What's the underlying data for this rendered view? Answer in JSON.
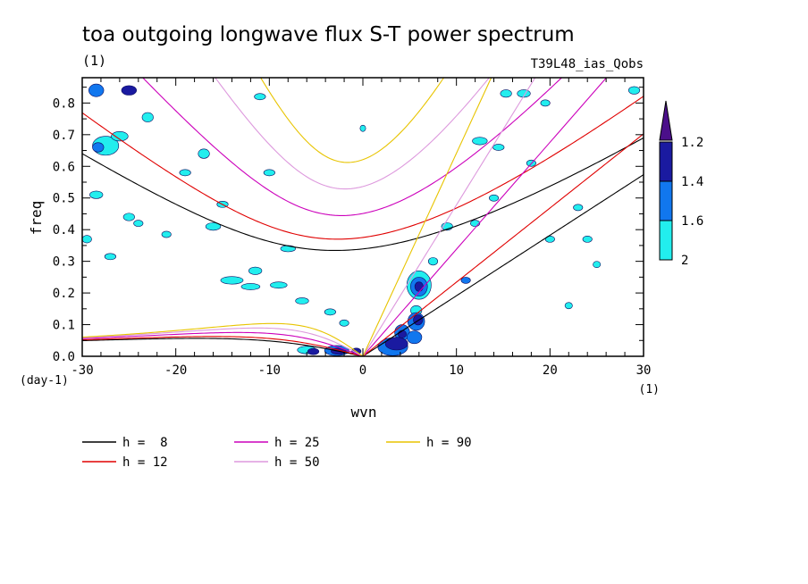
{
  "chart_data": {
    "type": "contour",
    "title": "toa outgoing longwave flux S-T power spectrum",
    "subtitle_left": "(1)",
    "subtitle_right": "T39L48_ias_Qobs",
    "xlabel": "wvn",
    "ylabel": "freq",
    "x_unit": "(1)",
    "y_unit": "(day-1)",
    "xlim": [
      -30,
      30
    ],
    "ylim": [
      0,
      0.88
    ],
    "x_ticks": [
      -30,
      -20,
      -10,
      0,
      10,
      20,
      30
    ],
    "x_tick_labels": [
      "-30",
      "-20",
      "-10",
      "0",
      "10",
      "20",
      "30"
    ],
    "y_ticks": [
      0,
      0.1,
      0.2,
      0.3,
      0.4,
      0.5,
      0.6,
      0.7,
      0.8
    ],
    "y_tick_labels": [
      "0.0",
      "0.1",
      "0.2",
      "0.3",
      "0.4",
      "0.5",
      "0.6",
      "0.7",
      "0.8"
    ],
    "colorbar": {
      "levels": [
        "1.2",
        "1.4",
        "1.6",
        "2"
      ],
      "colors": [
        "#22eeee",
        "#1177ee",
        "#1a1aa0",
        "#4b0f8a"
      ]
    },
    "dispersion_curves": [
      {
        "label": "h =  8",
        "h": 8,
        "color": "#000000"
      },
      {
        "label": "h = 12",
        "h": 12,
        "color": "#e00000"
      },
      {
        "label": "h = 25",
        "h": 25,
        "color": "#cc00bb"
      },
      {
        "label": "h = 50",
        "h": 50,
        "color": "#dd99dd"
      },
      {
        "label": "h = 90",
        "h": 90,
        "color": "#e8c400"
      }
    ],
    "blobs": [
      {
        "x": -28.5,
        "y": 0.84,
        "rx": 0.8,
        "ry": 0.02,
        "level": 2
      },
      {
        "x": -25,
        "y": 0.84,
        "rx": 0.8,
        "ry": 0.015,
        "level": 3
      },
      {
        "x": -27.5,
        "y": 0.665,
        "rx": 1.4,
        "ry": 0.03,
        "level": 1
      },
      {
        "x": -28.3,
        "y": 0.66,
        "rx": 0.6,
        "ry": 0.015,
        "level": 2
      },
      {
        "x": -26,
        "y": 0.695,
        "rx": 0.9,
        "ry": 0.015,
        "level": 1
      },
      {
        "x": -23,
        "y": 0.755,
        "rx": 0.6,
        "ry": 0.015,
        "level": 1
      },
      {
        "x": -25,
        "y": 0.44,
        "rx": 0.6,
        "ry": 0.012,
        "level": 1
      },
      {
        "x": -28.5,
        "y": 0.51,
        "rx": 0.7,
        "ry": 0.012,
        "level": 1
      },
      {
        "x": -29.5,
        "y": 0.37,
        "rx": 0.5,
        "ry": 0.012,
        "level": 1
      },
      {
        "x": -24,
        "y": 0.42,
        "rx": 0.5,
        "ry": 0.01,
        "level": 1
      },
      {
        "x": -19,
        "y": 0.58,
        "rx": 0.6,
        "ry": 0.01,
        "level": 1
      },
      {
        "x": -17,
        "y": 0.64,
        "rx": 0.6,
        "ry": 0.015,
        "level": 1
      },
      {
        "x": -15,
        "y": 0.48,
        "rx": 0.6,
        "ry": 0.01,
        "level": 1
      },
      {
        "x": -10,
        "y": 0.58,
        "rx": 0.6,
        "ry": 0.01,
        "level": 1
      },
      {
        "x": -11,
        "y": 0.82,
        "rx": 0.6,
        "ry": 0.01,
        "level": 1
      },
      {
        "x": -8,
        "y": 0.34,
        "rx": 0.8,
        "ry": 0.01,
        "level": 1
      },
      {
        "x": -16,
        "y": 0.41,
        "rx": 0.8,
        "ry": 0.012,
        "level": 1
      },
      {
        "x": -21,
        "y": 0.385,
        "rx": 0.5,
        "ry": 0.01,
        "level": 1
      },
      {
        "x": -27,
        "y": 0.315,
        "rx": 0.6,
        "ry": 0.01,
        "level": 1
      },
      {
        "x": -14,
        "y": 0.24,
        "rx": 1.2,
        "ry": 0.012,
        "level": 1
      },
      {
        "x": -12,
        "y": 0.22,
        "rx": 1.0,
        "ry": 0.01,
        "level": 1
      },
      {
        "x": -9,
        "y": 0.225,
        "rx": 0.9,
        "ry": 0.01,
        "level": 1
      },
      {
        "x": -11.5,
        "y": 0.27,
        "rx": 0.7,
        "ry": 0.012,
        "level": 1
      },
      {
        "x": -6.5,
        "y": 0.175,
        "rx": 0.7,
        "ry": 0.01,
        "level": 1
      },
      {
        "x": -3.5,
        "y": 0.14,
        "rx": 0.6,
        "ry": 0.01,
        "level": 1
      },
      {
        "x": -2,
        "y": 0.105,
        "rx": 0.5,
        "ry": 0.01,
        "level": 1
      },
      {
        "x": -6,
        "y": 0.02,
        "rx": 1.0,
        "ry": 0.012,
        "level": 1
      },
      {
        "x": -5.3,
        "y": 0.015,
        "rx": 0.6,
        "ry": 0.01,
        "level": 3
      },
      {
        "x": -2.8,
        "y": 0.018,
        "rx": 1.3,
        "ry": 0.016,
        "level": 2
      },
      {
        "x": -2.6,
        "y": 0.016,
        "rx": 0.8,
        "ry": 0.01,
        "level": 3
      },
      {
        "x": -0.7,
        "y": 0.016,
        "rx": 0.5,
        "ry": 0.01,
        "level": 3
      },
      {
        "x": 3.2,
        "y": 0.03,
        "rx": 1.6,
        "ry": 0.028,
        "level": 2
      },
      {
        "x": 3.6,
        "y": 0.04,
        "rx": 1.2,
        "ry": 0.02,
        "level": 3
      },
      {
        "x": 4.2,
        "y": 0.075,
        "rx": 0.8,
        "ry": 0.025,
        "level": 2
      },
      {
        "x": 4.2,
        "y": 0.07,
        "rx": 0.45,
        "ry": 0.012,
        "level": 3
      },
      {
        "x": 5.5,
        "y": 0.06,
        "rx": 0.8,
        "ry": 0.02,
        "level": 2
      },
      {
        "x": 5.7,
        "y": 0.11,
        "rx": 0.9,
        "ry": 0.028,
        "level": 2
      },
      {
        "x": 5.9,
        "y": 0.115,
        "rx": 0.5,
        "ry": 0.016,
        "level": 3
      },
      {
        "x": 5.7,
        "y": 0.145,
        "rx": 0.6,
        "ry": 0.015,
        "level": 1
      },
      {
        "x": 6,
        "y": 0.225,
        "rx": 1.3,
        "ry": 0.045,
        "level": 1
      },
      {
        "x": 6,
        "y": 0.22,
        "rx": 0.9,
        "ry": 0.03,
        "level": 2
      },
      {
        "x": 6,
        "y": 0.22,
        "rx": 0.45,
        "ry": 0.015,
        "level": 3
      },
      {
        "x": 7.5,
        "y": 0.3,
        "rx": 0.5,
        "ry": 0.012,
        "level": 1
      },
      {
        "x": 11,
        "y": 0.24,
        "rx": 0.5,
        "ry": 0.01,
        "level": 2
      },
      {
        "x": 12.5,
        "y": 0.68,
        "rx": 0.8,
        "ry": 0.012,
        "level": 1
      },
      {
        "x": 14.5,
        "y": 0.66,
        "rx": 0.6,
        "ry": 0.01,
        "level": 1
      },
      {
        "x": 15.3,
        "y": 0.83,
        "rx": 0.6,
        "ry": 0.012,
        "level": 1
      },
      {
        "x": 17.2,
        "y": 0.83,
        "rx": 0.7,
        "ry": 0.012,
        "level": 1
      },
      {
        "x": 19.5,
        "y": 0.8,
        "rx": 0.5,
        "ry": 0.01,
        "level": 1
      },
      {
        "x": 18,
        "y": 0.61,
        "rx": 0.5,
        "ry": 0.01,
        "level": 1
      },
      {
        "x": 9,
        "y": 0.41,
        "rx": 0.6,
        "ry": 0.012,
        "level": 1
      },
      {
        "x": 12,
        "y": 0.42,
        "rx": 0.5,
        "ry": 0.01,
        "level": 1
      },
      {
        "x": 14,
        "y": 0.5,
        "rx": 0.5,
        "ry": 0.01,
        "level": 1
      },
      {
        "x": 23,
        "y": 0.47,
        "rx": 0.5,
        "ry": 0.01,
        "level": 1
      },
      {
        "x": 20,
        "y": 0.37,
        "rx": 0.5,
        "ry": 0.01,
        "level": 1
      },
      {
        "x": 24,
        "y": 0.37,
        "rx": 0.5,
        "ry": 0.01,
        "level": 1
      },
      {
        "x": 29,
        "y": 0.84,
        "rx": 0.6,
        "ry": 0.012,
        "level": 1
      },
      {
        "x": 22,
        "y": 0.16,
        "rx": 0.4,
        "ry": 0.01,
        "level": 1
      },
      {
        "x": 0,
        "y": 0.72,
        "rx": 0.3,
        "ry": 0.01,
        "level": 1
      },
      {
        "x": 25,
        "y": 0.29,
        "rx": 0.4,
        "ry": 0.01,
        "level": 1
      }
    ]
  }
}
